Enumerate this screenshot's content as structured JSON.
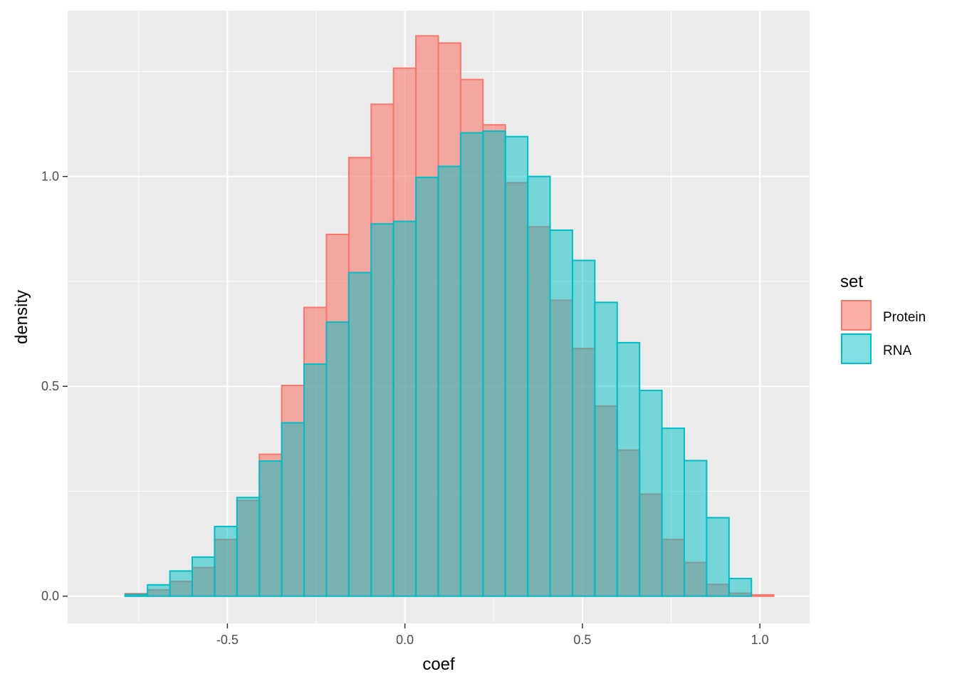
{
  "chart_data": {
    "type": "bar",
    "subtype": "overlapping-histogram",
    "xlabel": "coef",
    "ylabel": "density",
    "xlim": [
      -0.95,
      1.14
    ],
    "ylim": [
      -0.065,
      1.395
    ],
    "x_ticks": [
      -0.5,
      0.0,
      0.5,
      1.0
    ],
    "x_tick_labels": [
      "-0.5",
      "0.0",
      "0.5",
      "1.0"
    ],
    "y_ticks": [
      0.0,
      0.5,
      1.0
    ],
    "y_tick_labels": [
      "0.0",
      "0.5",
      "1.0"
    ],
    "grid": true,
    "legend": {
      "title": "set",
      "position": "right"
    },
    "bin_edges": [
      -0.851,
      -0.788,
      -0.725,
      -0.662,
      -0.599,
      -0.536,
      -0.473,
      -0.41,
      -0.347,
      -0.284,
      -0.221,
      -0.158,
      -0.095,
      -0.032,
      0.031,
      0.094,
      0.157,
      0.22,
      0.283,
      0.346,
      0.409,
      0.472,
      0.535,
      0.598,
      0.661,
      0.724,
      0.787,
      0.85,
      0.913,
      0.976,
      1.039
    ],
    "series": [
      {
        "name": "Protein",
        "fill": "#F8766D",
        "values": [
          0.0,
          0.006,
          0.015,
          0.035,
          0.068,
          0.135,
          0.228,
          0.338,
          0.502,
          0.688,
          0.862,
          1.045,
          1.172,
          1.258,
          1.335,
          1.318,
          1.231,
          1.123,
          0.985,
          0.88,
          0.705,
          0.59,
          0.453,
          0.348,
          0.243,
          0.135,
          0.08,
          0.028,
          0.007,
          0.003
        ]
      },
      {
        "name": "RNA",
        "fill": "#00BFC4",
        "values": [
          0.0,
          0.004,
          0.027,
          0.06,
          0.093,
          0.166,
          0.235,
          0.322,
          0.413,
          0.553,
          0.653,
          0.771,
          0.887,
          0.893,
          0.998,
          1.024,
          1.104,
          1.108,
          1.095,
          1.0,
          0.872,
          0.8,
          0.7,
          0.604,
          0.49,
          0.4,
          0.323,
          0.187,
          0.042,
          0.0
        ]
      }
    ]
  }
}
